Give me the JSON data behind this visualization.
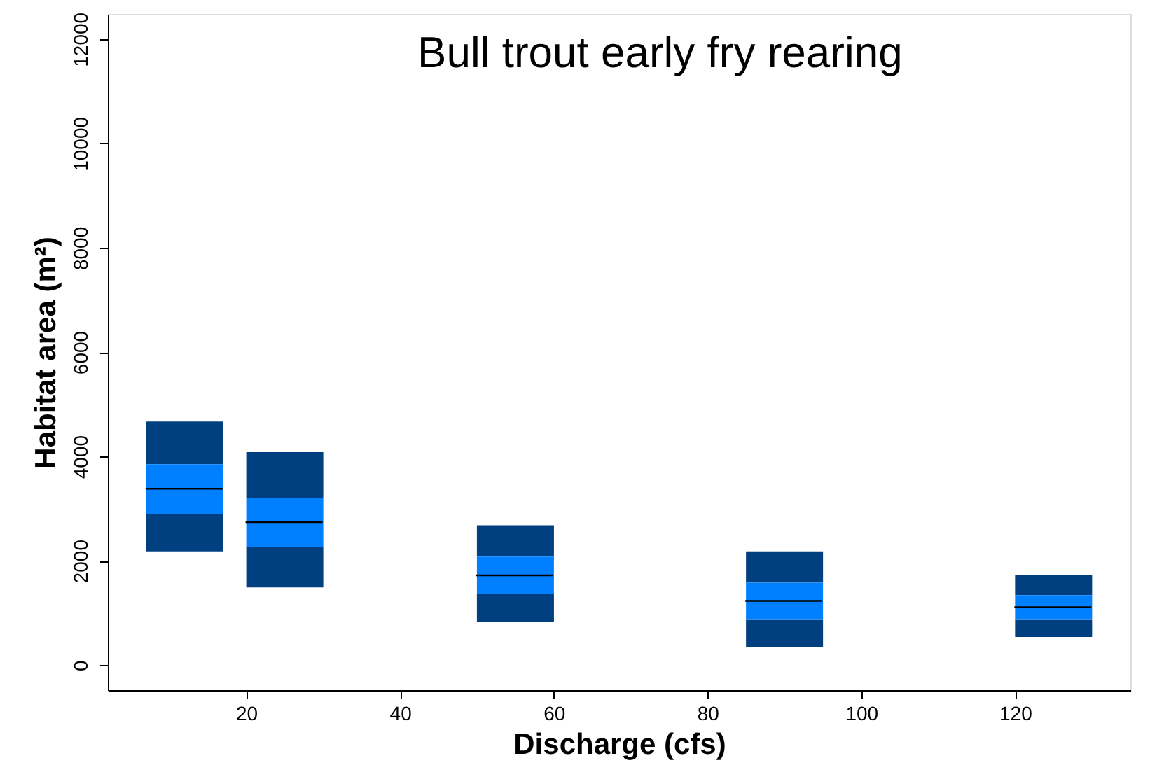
{
  "chart_data": {
    "type": "box",
    "title": "Bull trout early fry rearing",
    "xlabel": "Discharge (cfs)",
    "ylabel": "Habitat area (m²)",
    "x": [
      7,
      20,
      50,
      85,
      120
    ],
    "color": "#0080ff",
    "boxes": [
      {
        "low": 2180,
        "q1": 2900,
        "median": 3380,
        "q3": 3850,
        "high": 4670
      },
      {
        "low": 1490,
        "q1": 2260,
        "median": 2740,
        "q3": 3210,
        "high": 4080
      },
      {
        "low": 820,
        "q1": 1370,
        "median": 1720,
        "q3": 2080,
        "high": 2680
      },
      {
        "low": 340,
        "q1": 870,
        "median": 1230,
        "q3": 1580,
        "high": 2180
      },
      {
        "low": 540,
        "q1": 870,
        "median": 1110,
        "q3": 1340,
        "high": 1720
      }
    ],
    "xlim": [
      2,
      135
    ],
    "xticks": [
      20,
      40,
      60,
      80,
      100,
      120
    ],
    "ylim": [
      -480,
      12480
    ],
    "yticks": [
      0,
      2000,
      4000,
      6000,
      8000,
      10000,
      12000
    ],
    "grid": false
  }
}
